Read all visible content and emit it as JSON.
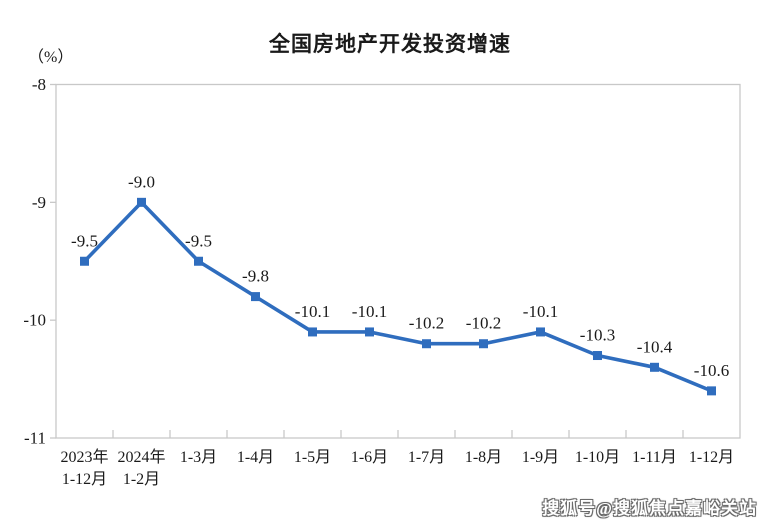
{
  "header": {
    "title": "全国房地产开发投资增速"
  },
  "watermark": {
    "text": "搜狐号@搜狐焦点嘉峪关站"
  },
  "chart_data": {
    "type": "line",
    "title": "全国房地产开发投资增速",
    "unit_label": "（%）",
    "categories": [
      "2023年\n1-12月",
      "2024年\n1-2月",
      "1-3月",
      "1-4月",
      "1-5月",
      "1-6月",
      "1-7月",
      "1-8月",
      "1-9月",
      "1-10月",
      "1-11月",
      "1-12月"
    ],
    "values": [
      -9.5,
      -9.0,
      -9.5,
      -9.8,
      -10.1,
      -10.1,
      -10.2,
      -10.2,
      -10.1,
      -10.3,
      -10.4,
      -10.6
    ],
    "data_labels": [
      "-9.5",
      "-9.0",
      "-9.5",
      "-9.8",
      "-10.1",
      "-10.1",
      "-10.2",
      "-10.2",
      "-10.1",
      "-10.3",
      "-10.4",
      "-10.6"
    ],
    "y_ticks": [
      "-8",
      "-9",
      "-10",
      "-11"
    ],
    "y_tick_values": [
      -8,
      -9,
      -10,
      -11
    ],
    "ylim": [
      -11,
      -8
    ],
    "grid": false,
    "legend": false,
    "marker": "square",
    "line_color": "#2F6DBE",
    "frame_color": "#c8c8c8",
    "text_color": "#1a1a1a"
  }
}
